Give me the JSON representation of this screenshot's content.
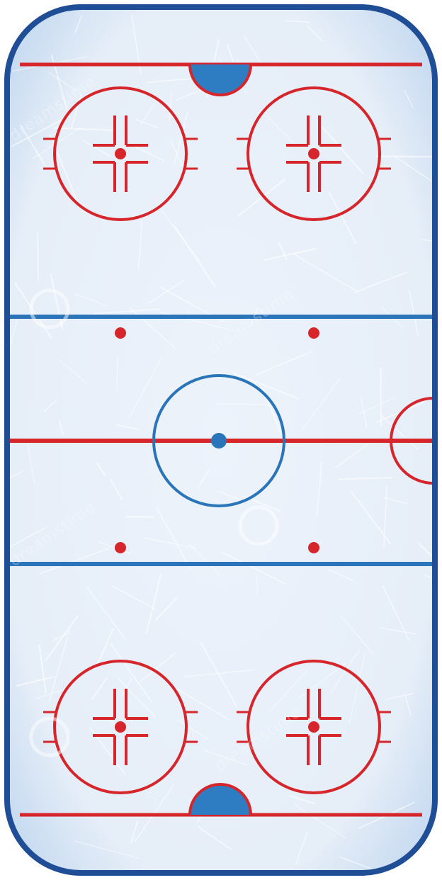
{
  "rink": {
    "name": "ice-hockey-rink",
    "orientation": "vertical",
    "view": "top-down"
  },
  "colors": {
    "ice": "#e9f0f9",
    "ice_edge": "#cfe0f2",
    "boards": "#1f4e96",
    "red_line": "#d6262b",
    "blue_line": "#2a74b9",
    "crease_fill": "#2e7cc2",
    "center_dot": "#2a74b9",
    "scratch": "#ffffff"
  },
  "watermark": {
    "text": "dreamstime"
  }
}
